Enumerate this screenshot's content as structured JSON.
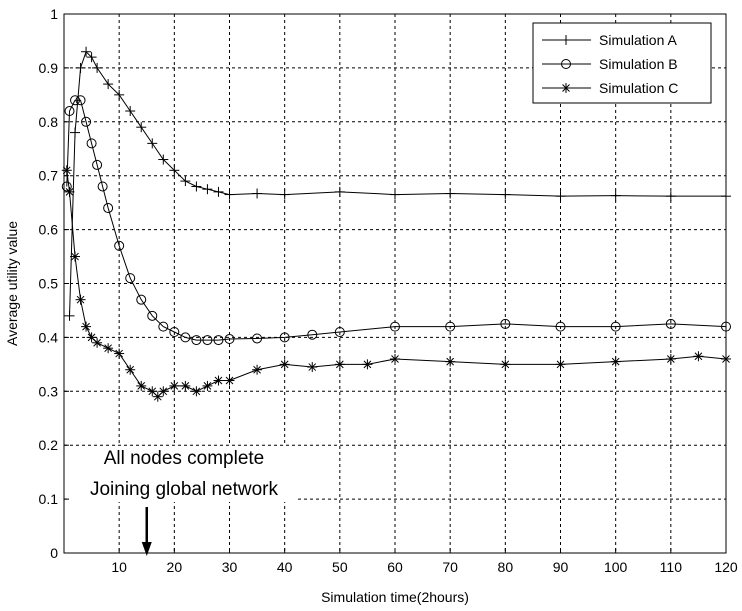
{
  "chart_data": {
    "type": "line",
    "title": "",
    "xlabel": "Simulation time(2hours)",
    "ylabel": "Average utility value",
    "xlim": [
      0,
      120
    ],
    "ylim": [
      0,
      1
    ],
    "xticks": [
      10,
      20,
      30,
      40,
      50,
      60,
      70,
      80,
      90,
      100,
      110,
      120
    ],
    "yticks": [
      0,
      0.1,
      0.2,
      0.3,
      0.4,
      0.5,
      0.6,
      0.7,
      0.8,
      0.9,
      1
    ],
    "xtick_labels": [
      "10",
      "20",
      "30",
      "40",
      "50",
      "60",
      "70",
      "80",
      "90",
      "100",
      "110",
      "120"
    ],
    "ytick_labels": [
      "0",
      "0.1",
      "0.2",
      "0.3",
      "0.4",
      "0.5",
      "0.6",
      "0.7",
      "0.8",
      "0.9",
      "1"
    ],
    "grid": true,
    "legend_position": "top-right",
    "series": [
      {
        "name": "Simulation A",
        "marker": "plus",
        "x": [
          1,
          2,
          3,
          4,
          5,
          6,
          8,
          10,
          12,
          14,
          16,
          18,
          20,
          22,
          24,
          26,
          28,
          30,
          35,
          40,
          50,
          60,
          70,
          80,
          90,
          100,
          110,
          120
        ],
        "y": [
          0.44,
          0.78,
          0.9,
          0.93,
          0.92,
          0.9,
          0.87,
          0.85,
          0.82,
          0.79,
          0.76,
          0.73,
          0.71,
          0.69,
          0.68,
          0.675,
          0.67,
          0.665,
          0.667,
          0.665,
          0.67,
          0.665,
          0.667,
          0.665,
          0.662,
          0.663,
          0.662,
          0.662
        ]
      },
      {
        "name": "Simulation B",
        "marker": "circle",
        "x": [
          0.5,
          1,
          2,
          3,
          4,
          5,
          6,
          7,
          8,
          10,
          12,
          14,
          16,
          18,
          20,
          22,
          24,
          26,
          28,
          30,
          35,
          40,
          45,
          50,
          60,
          70,
          80,
          90,
          100,
          110,
          120
        ],
        "y": [
          0.68,
          0.82,
          0.84,
          0.84,
          0.8,
          0.76,
          0.72,
          0.68,
          0.64,
          0.57,
          0.51,
          0.47,
          0.44,
          0.42,
          0.41,
          0.4,
          0.395,
          0.395,
          0.395,
          0.397,
          0.398,
          0.4,
          0.405,
          0.41,
          0.42,
          0.42,
          0.425,
          0.42,
          0.42,
          0.425,
          0.42
        ]
      },
      {
        "name": "Simulation C",
        "marker": "star",
        "x": [
          0.5,
          1,
          2,
          3,
          4,
          5,
          6,
          8,
          10,
          12,
          14,
          16,
          17,
          18,
          20,
          22,
          24,
          26,
          28,
          30,
          35,
          40,
          45,
          50,
          55,
          60,
          70,
          80,
          90,
          100,
          110,
          115,
          120
        ],
        "y": [
          0.71,
          0.67,
          0.55,
          0.47,
          0.42,
          0.4,
          0.39,
          0.38,
          0.37,
          0.34,
          0.31,
          0.3,
          0.29,
          0.3,
          0.31,
          0.31,
          0.3,
          0.31,
          0.32,
          0.32,
          0.34,
          0.35,
          0.345,
          0.35,
          0.35,
          0.36,
          0.355,
          0.35,
          0.35,
          0.355,
          0.36,
          0.365,
          0.36
        ]
      }
    ]
  },
  "annotation": {
    "line1": "All nodes complete",
    "line2": "Joining global network",
    "arrow_x": 15
  }
}
